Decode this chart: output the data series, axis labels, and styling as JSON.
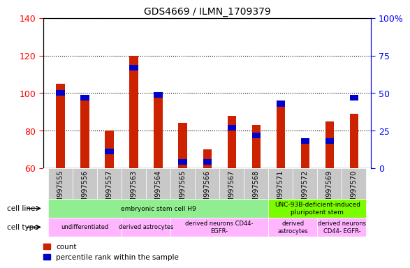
{
  "title": "GDS4669 / ILMN_1709379",
  "samples": [
    "GSM997555",
    "GSM997556",
    "GSM997557",
    "GSM997563",
    "GSM997564",
    "GSM997565",
    "GSM997566",
    "GSM997567",
    "GSM997568",
    "GSM997571",
    "GSM997572",
    "GSM997569",
    "GSM997570"
  ],
  "count_values": [
    105,
    99,
    80,
    120,
    100,
    84,
    70,
    88,
    83,
    96,
    73,
    85,
    89
  ],
  "percentile_values": [
    50,
    47,
    11,
    67,
    49,
    4,
    4,
    27,
    22,
    43,
    18,
    18,
    47
  ],
  "ylim_left": [
    60,
    140
  ],
  "ylim_right": [
    0,
    100
  ],
  "yticks_left": [
    60,
    80,
    100,
    120,
    140
  ],
  "yticks_right": [
    0,
    25,
    50,
    75,
    100
  ],
  "ytick_labels_right": [
    "0",
    "25",
    "50",
    "75",
    "100%"
  ],
  "cell_line_groups": [
    {
      "label": "embryonic stem cell H9",
      "start": 0,
      "end": 9,
      "color": "#90EE90"
    },
    {
      "label": "UNC-93B-deficient-induced\npluripotent stem",
      "start": 9,
      "end": 13,
      "color": "#7CFC00"
    }
  ],
  "cell_type_groups": [
    {
      "label": "undifferentiated",
      "start": 0,
      "end": 3,
      "color": "#FFB6FF"
    },
    {
      "label": "derived astrocytes",
      "start": 3,
      "end": 5,
      "color": "#FFB6FF"
    },
    {
      "label": "derived neurons CD44-\nEGFR-",
      "start": 5,
      "end": 9,
      "color": "#FFB6FF"
    },
    {
      "label": "derived\nastrocytes",
      "start": 9,
      "end": 11,
      "color": "#FFB6FF"
    },
    {
      "label": "derived neurons\nCD44- EGFR-",
      "start": 11,
      "end": 13,
      "color": "#FFB6FF"
    }
  ],
  "bar_width": 0.35,
  "count_color": "#CC2200",
  "percentile_color": "#0000CC",
  "tick_area_color": "#C8C8C8",
  "grid_linestyle": "dotted"
}
